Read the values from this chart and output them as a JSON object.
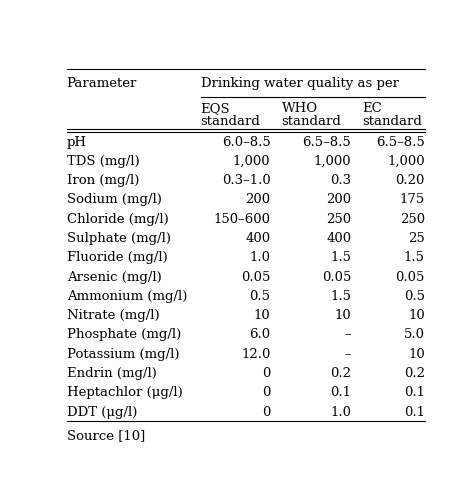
{
  "header_col": "Parameter",
  "header_span": "Drinking water quality as per",
  "subheaders": [
    "EQS\nstandard",
    "WHO\nstandard",
    "EC\nstandard"
  ],
  "rows": [
    [
      "pH",
      "6.0–8.5",
      "6.5–8.5",
      "6.5–8.5"
    ],
    [
      "TDS (mg/l)",
      "1,000",
      "1,000",
      "1,000"
    ],
    [
      "Iron (mg/l)",
      "0.3–1.0",
      "0.3",
      "0.20"
    ],
    [
      "Sodium (mg/l)",
      "200",
      "200",
      "175"
    ],
    [
      "Chloride (mg/l)",
      "150–600",
      "250",
      "250"
    ],
    [
      "Sulphate (mg/l)",
      "400",
      "400",
      "25"
    ],
    [
      "Fluoride (mg/l)",
      "1.0",
      "1.5",
      "1.5"
    ],
    [
      "Arsenic (mg/l)",
      "0.05",
      "0.05",
      "0.05"
    ],
    [
      "Ammonium (mg/l)",
      "0.5",
      "1.5",
      "0.5"
    ],
    [
      "Nitrate (mg/l)",
      "10",
      "10",
      "10"
    ],
    [
      "Phosphate (mg/l)",
      "6.0",
      "–",
      "5.0"
    ],
    [
      "Potassium (mg/l)",
      "12.0",
      "–",
      "10"
    ],
    [
      "Endrin (mg/l)",
      "0",
      "0.2",
      "0.2"
    ],
    [
      "Heptachlor (μg/l)",
      "0",
      "0.1",
      "0.1"
    ],
    [
      "DDT (μg/l)",
      "0",
      "1.0",
      "0.1"
    ]
  ],
  "footer": "Source [10]",
  "bg_color": "#ffffff",
  "text_color": "#000000",
  "font_size": 9.5
}
